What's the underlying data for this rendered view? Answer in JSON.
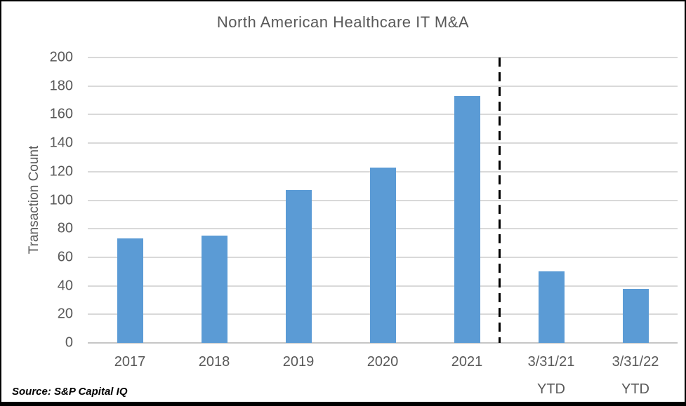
{
  "chart_data": {
    "type": "bar",
    "title": "North American Healthcare IT M&A",
    "xlabel": "",
    "ylabel": "Transaction Count",
    "ylim": [
      0,
      200
    ],
    "ytick_step": 20,
    "grid": "horizontal",
    "legend": "none",
    "bar_color": "#5b9bd5",
    "categories": [
      "2017",
      "2018",
      "2019",
      "2020",
      "2021",
      "3/31/21 YTD",
      "3/31/22 YTD"
    ],
    "category_lines": [
      {
        "line1": "2017",
        "line2": ""
      },
      {
        "line1": "2018",
        "line2": ""
      },
      {
        "line1": "2019",
        "line2": ""
      },
      {
        "line1": "2020",
        "line2": ""
      },
      {
        "line1": "2021",
        "line2": ""
      },
      {
        "line1": "3/31/21",
        "line2": "YTD"
      },
      {
        "line1": "3/31/22",
        "line2": "YTD"
      }
    ],
    "values": [
      73,
      75,
      107,
      123,
      173,
      50,
      38
    ],
    "annotations": [
      {
        "type": "vertical-dashed-line",
        "between": [
          "2021",
          "3/31/21 YTD"
        ],
        "color": "#000000"
      }
    ]
  },
  "source_note": "Source: S&P Capital IQ",
  "colors": {
    "bar": "#5b9bd5",
    "gridline": "#d9d9d9",
    "text": "#595959",
    "frame_border": "#000000"
  }
}
